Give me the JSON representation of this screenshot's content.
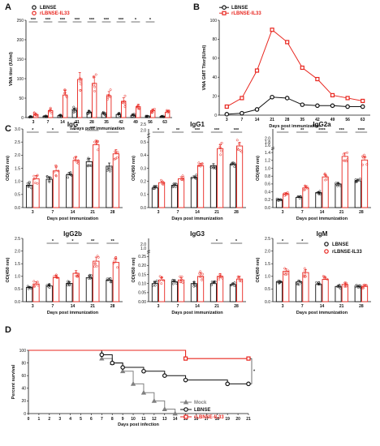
{
  "colors": {
    "lbnse": "#111111",
    "il33": "#e8261f",
    "mock": "#808080"
  },
  "chart_data": [
    {
      "id": "A",
      "panel_label": "A",
      "type": "bar",
      "xlabel": "Days post immunization",
      "ylabel": "VNA titer (IU/ml)",
      "ylim": [
        0,
        250
      ],
      "yticks": [
        0,
        50,
        100,
        150,
        200,
        250
      ],
      "categories": [
        "3",
        "7",
        "14",
        "21",
        "28",
        "35",
        "42",
        "49",
        "56",
        "63"
      ],
      "series": [
        {
          "name": "LBNSE",
          "values": [
            2,
            3,
            5,
            19,
            14,
            10,
            8,
            6,
            4,
            3
          ]
        },
        {
          "name": "rLBNSE-IL33",
          "values": [
            8,
            18,
            58,
            98,
            88,
            56,
            42,
            28,
            18,
            14
          ]
        }
      ],
      "errors": [
        [
          1,
          1,
          2,
          5,
          4,
          3,
          2,
          2,
          1,
          1
        ],
        [
          3,
          5,
          12,
          18,
          16,
          11,
          9,
          6,
          4,
          3
        ]
      ],
      "significance": [
        "***",
        "***",
        "***",
        "***",
        "***",
        "***",
        "***",
        "*",
        "*",
        ""
      ],
      "legend": "top-left"
    },
    {
      "id": "B",
      "panel_label": "B",
      "type": "line",
      "xlabel": "Days post immunization",
      "ylabel": "VNA GMT Titer(IU/ml)",
      "ylim": [
        0,
        100
      ],
      "yticks": [
        0,
        20,
        40,
        60,
        80,
        100
      ],
      "categories": [
        "3",
        "7",
        "14",
        "21",
        "28",
        "35",
        "42",
        "49",
        "56",
        "63"
      ],
      "series": [
        {
          "name": "LBNSE",
          "marker": "circle",
          "values": [
            1,
            2,
            6,
            19,
            18,
            11,
            10,
            10,
            9,
            9
          ]
        },
        {
          "name": "rLBNSE-IL33",
          "marker": "square",
          "values": [
            9,
            18,
            47,
            90,
            77,
            50,
            38,
            21,
            18,
            15
          ]
        }
      ],
      "legend": "top-left"
    },
    {
      "id": "IgG",
      "panel_label": "C",
      "title": "IgG",
      "type": "bar",
      "xlabel": "Days post immunization",
      "ylabel": "OD(450 nm)",
      "ylim": [
        0,
        3.0
      ],
      "yticks": [
        0,
        0.5,
        1.0,
        1.5,
        2.0,
        2.5,
        3.0
      ],
      "ytick_decimals": 1,
      "categories": [
        "3",
        "7",
        "14",
        "21",
        "28"
      ],
      "series": [
        {
          "name": "LBNSE",
          "values": [
            0.85,
            1.08,
            1.25,
            1.75,
            1.58
          ]
        },
        {
          "name": "rLBNSE-IL33",
          "values": [
            1.1,
            1.4,
            1.8,
            2.4,
            2.05
          ]
        }
      ],
      "errors": [
        [
          0.08,
          0.09,
          0.09,
          0.12,
          0.12
        ],
        [
          0.12,
          0.14,
          0.13,
          0.17,
          0.16
        ]
      ],
      "significance": [
        "*",
        "*",
        "***",
        "***",
        "*"
      ]
    },
    {
      "id": "IgG1",
      "title": "IgG1",
      "type": "bar",
      "xlabel": "Days post immunization",
      "ylabel": "OD(450 nm)",
      "ylim": [
        0,
        0.6
      ],
      "yticks": [
        0,
        0.1,
        0.2,
        0.3,
        0.4,
        0.5
      ],
      "ytick_decimals": 1,
      "ybreak_labels": [
        "2.0",
        "2.5"
      ],
      "categories": [
        "3",
        "7",
        "14",
        "21",
        "28"
      ],
      "series": [
        {
          "name": "LBNSE",
          "values": [
            0.15,
            0.17,
            0.23,
            0.32,
            0.33
          ]
        },
        {
          "name": "rLBNSE-IL33",
          "values": [
            0.19,
            0.22,
            0.32,
            0.45,
            0.47
          ]
        }
      ],
      "errors": [
        [
          0.01,
          0.01,
          0.012,
          0.015,
          0.017
        ],
        [
          0.012,
          0.015,
          0.017,
          0.03,
          0.028
        ]
      ],
      "significance": [
        "*",
        "**",
        "***",
        "***",
        "***"
      ]
    },
    {
      "id": "IgG2a",
      "title": "IgG2a",
      "type": "bar",
      "xlabel": "Days post immunization",
      "ylabel": "OD(450 nm)",
      "ylim": [
        0,
        2.0
      ],
      "yticks": [
        0,
        0.2,
        0.4,
        0.6,
        0.8,
        1.0,
        1.2,
        1.4
      ],
      "ytick_decimals": 1,
      "ybreak_labels": [
        "1.6",
        "1.8",
        "2.0"
      ],
      "categories": [
        "3",
        "7",
        "14",
        "21",
        "28"
      ],
      "series": [
        {
          "name": "LBNSE",
          "values": [
            0.2,
            0.26,
            0.38,
            0.6,
            0.68
          ]
        },
        {
          "name": "rLBNSE-IL33",
          "values": [
            0.35,
            0.5,
            0.78,
            1.3,
            1.21
          ]
        }
      ],
      "errors": [
        [
          0.015,
          0.02,
          0.025,
          0.035,
          0.04
        ],
        [
          0.03,
          0.04,
          0.05,
          0.09,
          0.08
        ]
      ],
      "significance": [
        "**",
        "**",
        "****",
        "***",
        "****"
      ]
    },
    {
      "id": "IgG2b",
      "title": "IgG2b",
      "type": "bar",
      "xlabel": "Days post immunization",
      "ylabel": "OD(450 nm)",
      "ylim": [
        0,
        2.5
      ],
      "yticks": [
        0,
        0.5,
        1.0,
        1.5,
        2.0,
        2.5
      ],
      "ytick_decimals": 1,
      "categories": [
        "3",
        "7",
        "14",
        "21",
        "28"
      ],
      "series": [
        {
          "name": "LBNSE",
          "values": [
            0.56,
            0.62,
            0.72,
            0.95,
            0.85
          ]
        },
        {
          "name": "rLBNSE-IL33",
          "values": [
            0.7,
            0.95,
            1.12,
            1.6,
            1.55
          ]
        }
      ],
      "errors": [
        [
          0.04,
          0.05,
          0.06,
          0.07,
          0.08
        ],
        [
          0.08,
          0.1,
          0.11,
          0.16,
          0.14
        ]
      ],
      "significance": [
        "",
        "*",
        "*",
        "**",
        "**"
      ]
    },
    {
      "id": "IgG3",
      "title": "IgG3",
      "type": "bar",
      "xlabel": "Days post immunization",
      "ylabel": "OD(450 nm)",
      "ylim": [
        0,
        0.35
      ],
      "yticks": [
        0,
        0.05,
        0.1,
        0.15,
        0.2,
        0.25
      ],
      "ytick_decimals": 2,
      "ybreak_labels": [
        "1.0",
        "2.0"
      ],
      "categories": [
        "3",
        "7",
        "14",
        "21",
        "28"
      ],
      "series": [
        {
          "name": "LBNSE",
          "values": [
            0.1,
            0.11,
            0.1,
            0.1,
            0.095
          ]
        },
        {
          "name": "rLBNSE-IL33",
          "values": [
            0.12,
            0.12,
            0.14,
            0.14,
            0.125
          ]
        }
      ],
      "errors": [
        [
          0.01,
          0.008,
          0.01,
          0.008,
          0.008
        ],
        [
          0.015,
          0.012,
          0.02,
          0.015,
          0.015
        ]
      ],
      "significance": [
        "",
        "",
        "",
        "*",
        "*"
      ]
    },
    {
      "id": "IgM",
      "title": "IgM",
      "type": "bar",
      "xlabel": "Days post immunization",
      "ylabel": "OD(450 nm)",
      "ylim": [
        0,
        2.5
      ],
      "yticks": [
        0,
        0.5,
        1.0,
        1.5,
        2.0,
        2.5
      ],
      "ytick_decimals": 1,
      "categories": [
        "3",
        "7",
        "14",
        "21",
        "28"
      ],
      "series": [
        {
          "name": "LBNSE",
          "values": [
            0.78,
            0.78,
            0.68,
            0.6,
            0.58
          ]
        },
        {
          "name": "rLBNSE-IL33",
          "values": [
            1.2,
            1.15,
            0.88,
            0.68,
            0.6
          ]
        }
      ],
      "errors": [
        [
          0.06,
          0.07,
          0.05,
          0.05,
          0.05
        ],
        [
          0.1,
          0.12,
          0.08,
          0.06,
          0.05
        ]
      ],
      "significance": [
        "*",
        "*",
        "",
        "",
        ""
      ],
      "legend": "top-right"
    },
    {
      "id": "D",
      "panel_label": "D",
      "type": "line",
      "xlabel": "Days post infection",
      "ylabel": "Percent survival",
      "xlim": [
        0,
        21
      ],
      "ylim": [
        0,
        100
      ],
      "xticks": [
        0,
        1,
        2,
        3,
        4,
        5,
        6,
        7,
        8,
        9,
        10,
        11,
        12,
        13,
        14,
        15,
        16,
        17,
        18,
        19,
        20,
        21
      ],
      "yticks": [
        0,
        20,
        40,
        60,
        80,
        100
      ],
      "series": [
        {
          "name": "Mock",
          "marker": "triangle",
          "points": [
            [
              0,
              100
            ],
            [
              7,
              100
            ],
            [
              7,
              87
            ],
            [
              8,
              87
            ],
            [
              8,
              80
            ],
            [
              9,
              80
            ],
            [
              9,
              67
            ],
            [
              10,
              67
            ],
            [
              10,
              47
            ],
            [
              11,
              47
            ],
            [
              11,
              33
            ],
            [
              12,
              33
            ],
            [
              12,
              20
            ],
            [
              13,
              20
            ],
            [
              13,
              7
            ],
            [
              14,
              7
            ],
            [
              14,
              0
            ]
          ]
        },
        {
          "name": "LBNSE",
          "marker": "circle",
          "points": [
            [
              0,
              100
            ],
            [
              7,
              100
            ],
            [
              7,
              93
            ],
            [
              8,
              93
            ],
            [
              8,
              80
            ],
            [
              9,
              80
            ],
            [
              9,
              73
            ],
            [
              11,
              73
            ],
            [
              11,
              67
            ],
            [
              13,
              67
            ],
            [
              13,
              60
            ],
            [
              15,
              60
            ],
            [
              15,
              53
            ],
            [
              19,
              53
            ],
            [
              19,
              47
            ],
            [
              21,
              47
            ]
          ]
        },
        {
          "name": "rLBNSE-IL33",
          "marker": "square",
          "points": [
            [
              0,
              100
            ],
            [
              15,
              100
            ],
            [
              15,
              87
            ],
            [
              21,
              87
            ]
          ]
        }
      ],
      "significance": [
        "*"
      ],
      "legend": "bottom-right"
    }
  ]
}
